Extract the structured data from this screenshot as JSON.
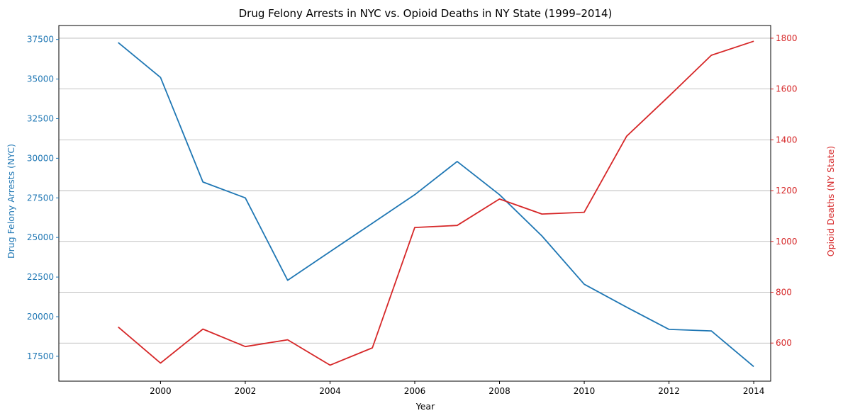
{
  "chart_data": {
    "type": "line",
    "title": "Drug Felony Arrests in NYC vs. Opioid Deaths in NY State (1999–2014)",
    "xlabel": "Year",
    "x": [
      1999,
      2000,
      2001,
      2002,
      2003,
      2004,
      2005,
      2006,
      2007,
      2008,
      2009,
      2010,
      2011,
      2012,
      2013,
      2014
    ],
    "xlim": [
      1997.6,
      2014.4
    ],
    "xticks": [
      2000,
      2002,
      2004,
      2006,
      2008,
      2010,
      2012,
      2014
    ],
    "grid": "horizontal lines from right axis",
    "y_left": {
      "label": "Drug Felony Arrests (NYC)",
      "color": "#1f77b4",
      "lim": [
        15930,
        38380
      ],
      "ticks": [
        17500,
        20000,
        22500,
        25000,
        27500,
        30000,
        32500,
        35000,
        37500
      ]
    },
    "y_right": {
      "label": "Opioid Deaths (NY State)",
      "color": "#d62728",
      "lim": [
        450,
        1850
      ],
      "ticks": [
        600,
        800,
        1000,
        1200,
        1400,
        1600,
        1800
      ]
    },
    "series": [
      {
        "axis": "left",
        "color": "#1f77b4",
        "values": [
          37300,
          35100,
          28500,
          27500,
          22300,
          24100,
          25900,
          27700,
          29800,
          27700,
          25100,
          22050,
          20600,
          19200,
          19100,
          16850
        ]
      },
      {
        "axis": "right",
        "color": "#d62728",
        "values": [
          663,
          521,
          655,
          586,
          613,
          513,
          581,
          1055,
          1063,
          1167,
          1108,
          1115,
          1414,
          1572,
          1733,
          1788
        ]
      }
    ]
  }
}
